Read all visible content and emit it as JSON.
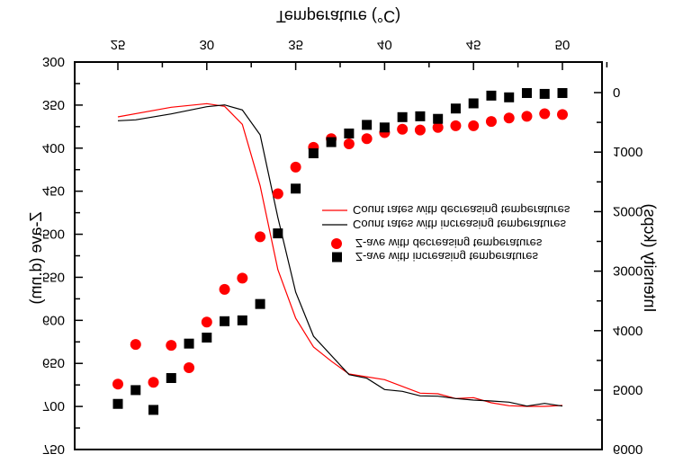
{
  "chart_data": {
    "type": "scatter",
    "orientation_note_visible": "vertically mirrored figure",
    "xlabel": "Temperature (°C)",
    "ylabel_left": "Z-ave (d.nm)",
    "ylabel_right": "Intensity (kcps)",
    "xlim": [
      22.5,
      52.5
    ],
    "ylim_left": [
      300,
      750
    ],
    "ylim_right": [
      -520,
      6000
    ],
    "x_ticks": [
      "25",
      "30",
      "35",
      "40",
      "45",
      "50"
    ],
    "y_left_ticks": [
      "300",
      "350",
      "400",
      "450",
      "500",
      "550",
      "600",
      "650",
      "700",
      "750"
    ],
    "y_right_ticks": [
      "0",
      "1000",
      "2000",
      "3000",
      "4000",
      "5000",
      "6000"
    ],
    "legend_position": "center-right",
    "series": [
      {
        "name": "Count rates with decreasing temperatures",
        "kind": "line",
        "axis": "right",
        "color": "#ff0000",
        "x": [
          25,
          28,
          30,
          31,
          32,
          33,
          34,
          35,
          36,
          37,
          38,
          40,
          42,
          43,
          44,
          45,
          46,
          47,
          48,
          49,
          50
        ],
        "y": [
          408,
          246,
          186,
          231,
          533,
          1566,
          2976,
          3792,
          4275,
          4512,
          4728,
          4823,
          5050,
          5060,
          5140,
          5125,
          5211,
          5261,
          5272,
          5272,
          5257
        ]
      },
      {
        "name": "Count rates with increasing temperatures",
        "kind": "line",
        "axis": "right",
        "color": "#000000",
        "x": [
          25,
          26,
          28,
          30,
          31,
          32,
          33,
          34,
          35,
          36,
          38,
          39,
          40,
          41,
          42,
          43,
          44,
          45,
          46,
          47,
          48,
          49,
          50
        ],
        "y": [
          473,
          458,
          358,
          237,
          207,
          292,
          710,
          2100,
          3353,
          4094,
          4739,
          4799,
          4989,
          5020,
          5095,
          5101,
          5140,
          5166,
          5181,
          5201,
          5267,
          5222,
          5267
        ]
      },
      {
        "name": "Z-ave with decreasing temperatures",
        "kind": "circle",
        "axis": "left",
        "color": "#ff0000",
        "x": [
          25,
          26,
          27,
          28,
          29,
          30,
          31,
          32,
          33,
          34,
          35,
          36,
          37,
          38,
          39,
          40,
          41,
          42,
          43,
          44,
          45,
          46,
          47,
          48,
          49,
          50
        ],
        "y": [
          674,
          628,
          672,
          629,
          655,
          602,
          564,
          551,
          503,
          453,
          422,
          399,
          389,
          395,
          389,
          382,
          378,
          379,
          376,
          374,
          374,
          369,
          365,
          363,
          360,
          361
        ]
      },
      {
        "name": "Z-ave with increasing temperatures",
        "kind": "square",
        "axis": "left",
        "color": "#000000",
        "x": [
          25,
          26,
          27,
          28,
          29,
          30,
          31,
          32,
          33,
          34,
          35,
          36,
          37,
          38,
          39,
          40,
          41,
          42,
          43,
          44,
          45,
          46,
          47,
          48,
          49,
          50
        ],
        "y": [
          697,
          681,
          704,
          667,
          627,
          620,
          601,
          600,
          581,
          499,
          447,
          406,
          393,
          383,
          373,
          376,
          364,
          363,
          366,
          354,
          348,
          339,
          341,
          336,
          337,
          336
        ]
      }
    ]
  }
}
